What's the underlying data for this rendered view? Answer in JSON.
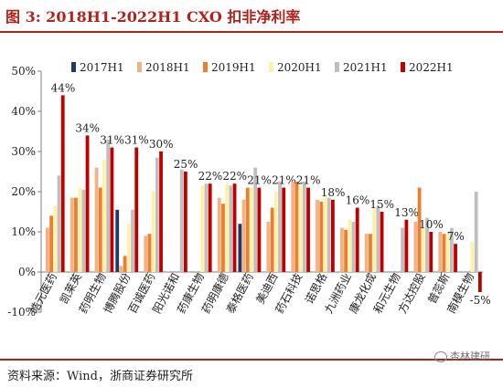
{
  "title": "图 3:   2018H1-2022H1 CXO 扣非净利率",
  "source": "资料来源：Wind，浙商证券研究所",
  "watermark": "杏林建研",
  "colors": [
    "#1f3864",
    "#f4b183",
    "#ed7d31",
    "#fff2a8",
    "#bfbfbf",
    "#c00000"
  ],
  "chart_data": {
    "type": "bar",
    "title": "",
    "xlabel": "",
    "ylabel": "",
    "ylim": [
      -10,
      50
    ],
    "yticks": [
      "-10%",
      "0%",
      "10%",
      "20%",
      "30%",
      "40%",
      "50%"
    ],
    "grid": false,
    "legend": "top",
    "categories": [
      "皓元医药",
      "凯莱英",
      "药明生物",
      "博腾股份",
      "百诚医药",
      "阳光诺和",
      "药康生物",
      "药明康德",
      "泰格医药",
      "美迪西",
      "药石科技",
      "诺思格",
      "九洲药业",
      "康龙化成",
      "和元生物",
      "方达控股",
      "普蕊斯",
      "南模生物"
    ],
    "series": [
      {
        "name": "2017H1",
        "values": [
          null,
          null,
          null,
          15.5,
          null,
          null,
          null,
          null,
          12.0,
          null,
          null,
          null,
          null,
          null,
          null,
          null,
          null,
          null
        ]
      },
      {
        "name": "2018H1",
        "values": [
          11.0,
          18.5,
          26.0,
          1.5,
          9.0,
          null,
          null,
          18.5,
          18.0,
          12.5,
          22.5,
          18.0,
          11.0,
          9.5,
          null,
          12.5,
          10.0,
          null
        ]
      },
      {
        "name": "2019H1",
        "values": [
          14.0,
          18.5,
          21.0,
          4.0,
          9.5,
          null,
          null,
          17.0,
          21.0,
          16.0,
          22.5,
          17.5,
          10.5,
          9.5,
          null,
          21.0,
          9.5,
          null
        ]
      },
      {
        "name": "2020H1",
        "values": [
          16.5,
          21.0,
          28.0,
          12.0,
          20.0,
          null,
          21.5,
          22.0,
          21.0,
          20.0,
          21.5,
          19.0,
          13.0,
          16.0,
          null,
          11.0,
          9.5,
          7.5
        ]
      },
      {
        "name": "2021H1",
        "values": [
          24.0,
          20.5,
          33.0,
          15.5,
          28.5,
          25.5,
          22.0,
          21.5,
          26.0,
          22.5,
          22.5,
          18.5,
          12.5,
          16.5,
          11.0,
          13.5,
          11.0,
          20.0
        ]
      },
      {
        "name": "2022H1",
        "values": [
          44.0,
          34.0,
          31.0,
          31.0,
          30.0,
          25.0,
          22.0,
          22.0,
          21.0,
          21.0,
          21.0,
          18.0,
          16.0,
          15.0,
          13.0,
          10.0,
          7.0,
          -5.0
        ]
      }
    ],
    "data_labels": [
      "44%",
      "34%",
      "31%",
      "31%",
      "30%",
      "25%",
      "22%",
      "22%",
      "21%",
      "21%",
      "21%",
      "18%",
      "16%",
      "15%",
      "13%",
      "10%",
      "7%",
      "-5%"
    ]
  }
}
